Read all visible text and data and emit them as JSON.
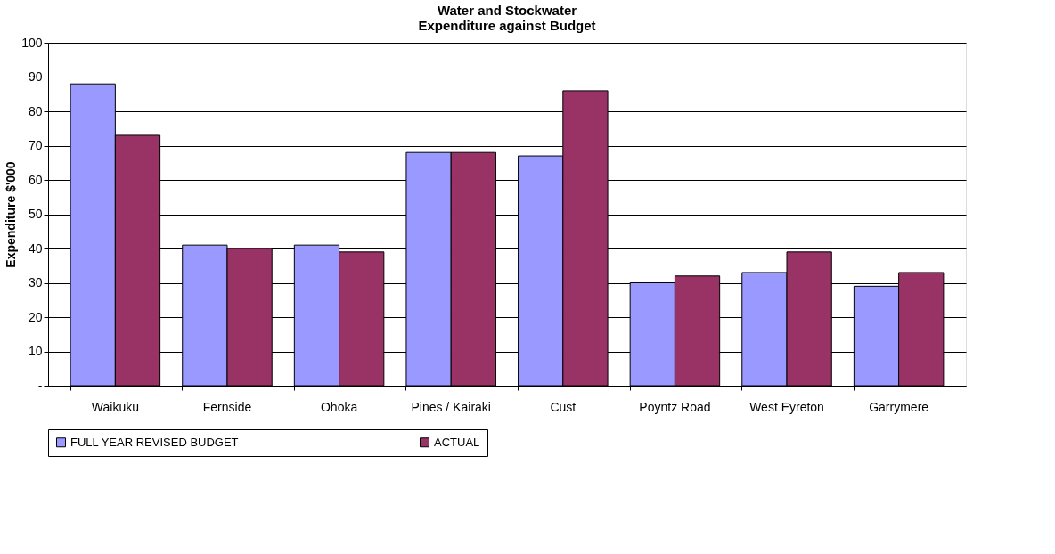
{
  "chart_data": {
    "type": "bar",
    "title": [
      "Water and Stockwater",
      "Expenditure against Budget"
    ],
    "ylabel": "Expenditure $'000",
    "categories": [
      "Waikuku",
      "Fernside",
      "Ohoka",
      "Pines / Kairaki",
      "Cust",
      "Poyntz Road",
      "West Eyreton",
      "Garrymere"
    ],
    "series": [
      {
        "name": "FULL YEAR REVISED BUDGET",
        "color": "#9999ff",
        "values": [
          88,
          41,
          41,
          68,
          67,
          30,
          33,
          29
        ]
      },
      {
        "name": "ACTUAL",
        "color": "#993366",
        "values": [
          73,
          40,
          39,
          68,
          86,
          32,
          39,
          33
        ]
      }
    ],
    "ylim": [
      0,
      100
    ],
    "yticks": [
      {
        "value": 0,
        "label": "-"
      },
      10,
      20,
      30,
      40,
      50,
      60,
      70,
      80,
      90,
      100
    ],
    "grid": "y",
    "legend": "bottom"
  }
}
